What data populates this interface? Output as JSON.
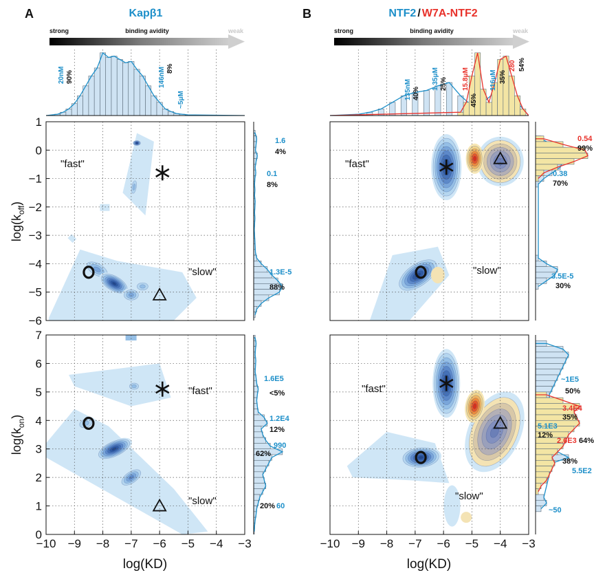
{
  "colors": {
    "blue": "#1d8fc9",
    "red": "#e8322b",
    "black": "#111111",
    "grey": "#bdbdbd",
    "contour_blue_light": "#cfe6f6",
    "contour_blue_dark": "#2b4f9c",
    "contour_yellow": "#f6e6b0",
    "contour_red": "#e23a1f"
  },
  "panel_a": {
    "letter": "A",
    "title": "Kapβ1",
    "scale_strong": "strong",
    "scale_middle": "binding avidity",
    "scale_weak": "weak",
    "histogram_annotations": [
      {
        "text": "20nM",
        "color": "blue"
      },
      {
        "text": "90%",
        "color": "black"
      },
      {
        "text": "146nM",
        "color": "blue"
      },
      {
        "text": "8%",
        "color": "black"
      },
      {
        "text": "~5μM",
        "color": "blue"
      }
    ],
    "koff_labels": {
      "fast": "\"fast\"",
      "slow": "\"slow\""
    },
    "kon_labels": {
      "fast": "\"fast\"",
      "slow": "\"slow\""
    },
    "koff_side_annotations": [
      {
        "value": "1.6",
        "pct": "4%"
      },
      {
        "value": "0.1",
        "pct": "8%"
      },
      {
        "value": "1.3E-5",
        "pct": "88%"
      }
    ],
    "kon_side_annotations": [
      {
        "value": "1.6E5",
        "pct": "<5%"
      },
      {
        "value": "1.2E4",
        "pct": "12%"
      },
      {
        "value": "990",
        "pct": "62%"
      },
      {
        "value": "60",
        "pct": "20%"
      }
    ]
  },
  "panel_b": {
    "letter": "B",
    "title_part1": "NTF2",
    "title_sep": "/",
    "title_part2": "W7A-NTF2",
    "scale_strong": "strong",
    "scale_middle": "binding avidity",
    "scale_weak": "weak",
    "histogram_annotations": [
      {
        "text": "135nM",
        "color": "blue"
      },
      {
        "text": "40%",
        "color": "black"
      },
      {
        "text": "1.35μM",
        "color": "blue"
      },
      {
        "text": "25%",
        "color": "black"
      },
      {
        "text": "15.8μM",
        "color": "red"
      },
      {
        "text": "45%",
        "color": "black"
      },
      {
        "text": "116μM",
        "color": "blue"
      },
      {
        "text": "35%",
        "color": "black"
      },
      {
        "text": "280",
        "color": "red"
      },
      {
        "text": "54%",
        "color": "black"
      }
    ],
    "koff_labels": {
      "fast": "\"fast\"",
      "slow": "\"slow\""
    },
    "kon_labels": {
      "fast": "\"fast\"",
      "slow": "\"slow\""
    },
    "koff_side_annotations": [
      {
        "value": "0.54",
        "pct": "99%",
        "color": "red"
      },
      {
        "value": "0.38",
        "pct": "70%",
        "color": "blue"
      },
      {
        "value": "3.5E-5",
        "pct": "30%",
        "color": "blue"
      }
    ],
    "kon_side_annotations": [
      {
        "value": "~1E5",
        "pct": "50%",
        "color": "blue"
      },
      {
        "value": "3.4E4",
        "pct": "35%",
        "color": "red"
      },
      {
        "value": "5.1E3",
        "pct": "12%",
        "color": "blue"
      },
      {
        "value": "2.6E3",
        "pct": "64%",
        "color": "red"
      },
      {
        "value": "5.5E2",
        "pct": "38%",
        "color": "blue"
      },
      {
        "value": "~50",
        "pct": "",
        "color": "blue"
      }
    ]
  },
  "chart_data": [
    {
      "type": "heatmap",
      "panel": "A",
      "name": "Kapβ1 log(koff) vs log(KD)",
      "xlabel": "",
      "ylabel": "log(koff)",
      "xlim": [
        -10,
        -3
      ],
      "ylim": [
        -6,
        1
      ],
      "x_ticks": [],
      "y_ticks": [
        1,
        0,
        -1,
        -2,
        -3,
        -4,
        -5,
        -6
      ],
      "grid": true,
      "markers": [
        {
          "symbol": "asterisk",
          "x": -5.9,
          "y": -0.8
        },
        {
          "symbol": "circle",
          "x": -8.5,
          "y": -4.3
        },
        {
          "symbol": "triangle",
          "x": -6.0,
          "y": -5.1
        }
      ],
      "peaks": [
        {
          "x": -7.6,
          "y": -4.7
        },
        {
          "x": -7.0,
          "y": -5.1
        },
        {
          "x": -8.3,
          "y": -4.1
        },
        {
          "x": -6.8,
          "y": 0.2
        },
        {
          "x": -6.9,
          "y": -1.3
        }
      ]
    },
    {
      "type": "heatmap",
      "panel": "A",
      "name": "Kapβ1 log(kon) vs log(KD)",
      "xlabel": "log(KD)",
      "ylabel": "log(kon)",
      "xlim": [
        -10,
        -3
      ],
      "ylim": [
        0,
        7
      ],
      "x_ticks": [
        -10,
        -9,
        -8,
        -7,
        -6,
        -5,
        -4,
        -3
      ],
      "y_ticks": [
        0,
        1,
        2,
        3,
        4,
        5,
        6,
        7
      ],
      "grid": true,
      "markers": [
        {
          "symbol": "asterisk",
          "x": -5.9,
          "y": 5.1
        },
        {
          "symbol": "circle",
          "x": -8.5,
          "y": 3.9
        },
        {
          "symbol": "triangle",
          "x": -6.0,
          "y": 1.0
        }
      ],
      "peaks": [
        {
          "x": -7.6,
          "y": 3.0
        },
        {
          "x": -7.0,
          "y": 2.0
        },
        {
          "x": -6.9,
          "y": 5.2
        }
      ]
    },
    {
      "type": "heatmap",
      "panel": "B",
      "name": "NTF2 / W7A-NTF2 log(koff) vs log(KD)",
      "xlabel": "",
      "ylabel": "",
      "xlim": [
        -10,
        -3
      ],
      "ylim": [
        -6,
        1
      ],
      "x_ticks": [],
      "grid": true,
      "markers": [
        {
          "symbol": "asterisk",
          "x": -5.9,
          "y": -0.6
        },
        {
          "symbol": "circle",
          "x": -6.8,
          "y": -4.3
        },
        {
          "symbol": "triangle",
          "x": -4.0,
          "y": -0.3
        }
      ],
      "peaks": [
        {
          "series": "NTF2",
          "x": -5.9,
          "y": -0.5
        },
        {
          "series": "NTF2",
          "x": -6.8,
          "y": -4.3
        },
        {
          "series": "W7A-NTF2",
          "x": -4.9,
          "y": -0.3
        },
        {
          "series": "W7A-NTF2",
          "x": -4.0,
          "y": -0.3
        }
      ]
    },
    {
      "type": "heatmap",
      "panel": "B",
      "name": "NTF2 / W7A-NTF2 log(kon) vs log(KD)",
      "xlabel": "log(KD)",
      "ylabel": "",
      "xlim": [
        -10,
        -3
      ],
      "ylim": [
        0,
        7
      ],
      "x_ticks": [
        -10,
        -9,
        -8,
        -7,
        -6,
        -5,
        -4,
        -3
      ],
      "grid": true,
      "markers": [
        {
          "symbol": "asterisk",
          "x": -5.9,
          "y": 5.3
        },
        {
          "symbol": "circle",
          "x": -6.8,
          "y": 2.7
        },
        {
          "symbol": "triangle",
          "x": -4.0,
          "y": 3.9
        }
      ],
      "peaks": [
        {
          "series": "NTF2",
          "x": -5.9,
          "y": 5.3
        },
        {
          "series": "NTF2",
          "x": -6.8,
          "y": 2.7
        },
        {
          "series": "W7A-NTF2",
          "x": -4.9,
          "y": 4.5
        },
        {
          "series": "W7A-NTF2",
          "x": -4.0,
          "y": 3.9
        }
      ]
    },
    {
      "type": "bar",
      "panel": "A",
      "name": "Kapβ1 KD histogram",
      "xlim": [
        -10,
        -3
      ],
      "bin_centers": [
        -9.6,
        -9.4,
        -9.2,
        -9.0,
        -8.8,
        -8.6,
        -8.4,
        -8.2,
        -8.0,
        -7.8,
        -7.6,
        -7.4,
        -7.2,
        -7.0,
        -6.8,
        -6.6,
        -6.4,
        -6.2,
        -6.0,
        -5.8,
        -5.6,
        -5.4,
        -5.2,
        -5.0
      ],
      "values": [
        0.02,
        0.05,
        0.1,
        0.18,
        0.3,
        0.45,
        0.6,
        0.72,
        0.95,
        0.88,
        0.9,
        0.85,
        0.8,
        0.82,
        0.7,
        0.6,
        0.45,
        0.3,
        0.2,
        0.1,
        0.06,
        0.03,
        0.02,
        0.01
      ]
    },
    {
      "type": "bar",
      "panel": "B",
      "name": "NTF2 / W7A-NTF2 KD histogram",
      "xlim": [
        -10,
        -3
      ],
      "series": [
        {
          "name": "NTF2",
          "bin_centers": [
            -9.0,
            -8.6,
            -8.2,
            -7.8,
            -7.4,
            -7.0,
            -6.6,
            -6.2,
            -5.8,
            -5.4,
            -5.0,
            -4.6,
            -4.2,
            -3.8,
            -3.4
          ],
          "values": [
            0.02,
            0.05,
            0.1,
            0.2,
            0.3,
            0.35,
            0.38,
            0.45,
            0.5,
            0.3,
            0.15,
            0.2,
            0.35,
            0.4,
            0.2
          ]
        },
        {
          "name": "W7A-NTF2",
          "bin_centers": [
            -5.4,
            -5.2,
            -5.0,
            -4.8,
            -4.6,
            -4.4,
            -4.2,
            -4.0,
            -3.8,
            -3.6,
            -3.4,
            -3.2
          ],
          "values": [
            0.05,
            0.2,
            0.6,
            0.95,
            0.4,
            0.2,
            0.5,
            0.85,
            0.9,
            0.6,
            0.3,
            0.1
          ]
        }
      ]
    },
    {
      "type": "bar",
      "panel": "A",
      "name": "Kapβ1 log(koff) marginal",
      "ylim": [
        -6,
        1
      ],
      "bin_centers": [
        0.6,
        0.4,
        0.2,
        0.0,
        -0.2,
        -0.4,
        -0.6,
        -0.8,
        -1.0,
        -1.2,
        -1.4,
        -1.6,
        -1.8,
        -2.0,
        -2.2,
        -2.4,
        -2.6,
        -2.8,
        -3.0,
        -3.2,
        -3.4,
        -3.6,
        -3.8,
        -4.0,
        -4.2,
        -4.4,
        -4.6,
        -4.8,
        -5.0,
        -5.2,
        -5.4,
        -5.6,
        -5.8
      ],
      "values": [
        0.05,
        0.1,
        0.08,
        0.06,
        0.12,
        0.08,
        0.05,
        0.07,
        0.04,
        0.03,
        0.04,
        0.03,
        0.05,
        0.04,
        0.03,
        0.04,
        0.03,
        0.02,
        0.03,
        0.04,
        0.05,
        0.06,
        0.1,
        0.25,
        0.45,
        0.6,
        0.8,
        0.95,
        0.85,
        0.5,
        0.25,
        0.1,
        0.05
      ]
    },
    {
      "type": "bar",
      "panel": "A",
      "name": "Kapβ1 log(kon) marginal",
      "ylim": [
        0,
        7
      ],
      "bin_centers": [
        6.9,
        6.7,
        6.5,
        6.3,
        6.1,
        5.9,
        5.7,
        5.5,
        5.3,
        5.1,
        4.9,
        4.7,
        4.5,
        4.3,
        4.1,
        3.9,
        3.7,
        3.5,
        3.3,
        3.1,
        2.9,
        2.7,
        2.5,
        2.3,
        2.1,
        1.9,
        1.7,
        1.5,
        1.3,
        1.1,
        0.9,
        0.7,
        0.5,
        0.3,
        0.1
      ],
      "values": [
        0.05,
        0.08,
        0.06,
        0.05,
        0.07,
        0.06,
        0.05,
        0.08,
        0.1,
        0.15,
        0.12,
        0.1,
        0.12,
        0.15,
        0.35,
        0.45,
        0.25,
        0.3,
        0.4,
        0.55,
        0.95,
        0.6,
        0.5,
        0.4,
        0.3,
        0.35,
        0.4,
        0.3,
        0.2,
        0.15,
        0.1,
        0.08,
        0.05,
        0.03,
        0.02
      ]
    },
    {
      "type": "bar",
      "panel": "B",
      "name": "NTF2 / W7A-NTF2 log(koff) marginal",
      "ylim": [
        -6,
        1
      ],
      "series": [
        {
          "name": "NTF2",
          "bin_centers": [
            0.4,
            0.2,
            0.0,
            -0.2,
            -0.4,
            -0.6,
            -0.8,
            -1.0,
            -1.2,
            -3.8,
            -4.0,
            -4.2,
            -4.4,
            -4.6,
            -4.8
          ],
          "values": [
            0.1,
            0.3,
            0.55,
            0.7,
            0.5,
            0.45,
            0.3,
            0.15,
            0.05,
            0.05,
            0.2,
            0.4,
            0.35,
            0.2,
            0.05
          ]
        },
        {
          "name": "W7A-NTF2",
          "bin_centers": [
            0.4,
            0.2,
            0.0,
            -0.2,
            -0.4,
            -0.6,
            -0.8,
            -1.0
          ],
          "values": [
            0.15,
            0.5,
            0.9,
            0.95,
            0.7,
            0.4,
            0.15,
            0.05
          ]
        }
      ]
    },
    {
      "type": "bar",
      "panel": "B",
      "name": "NTF2 / W7A-NTF2 log(kon) marginal",
      "ylim": [
        0,
        7
      ],
      "series": [
        {
          "name": "NTF2",
          "bin_centers": [
            6.7,
            6.5,
            6.3,
            6.1,
            5.9,
            5.7,
            5.5,
            5.3,
            5.1,
            4.9,
            3.9,
            3.7,
            3.5,
            2.9,
            2.7,
            2.5,
            1.3,
            1.1,
            0.9
          ],
          "values": [
            0.2,
            0.5,
            0.6,
            0.55,
            0.5,
            0.45,
            0.4,
            0.35,
            0.3,
            0.25,
            0.3,
            0.2,
            0.15,
            0.4,
            0.6,
            0.3,
            0.15,
            0.2,
            0.1
          ]
        },
        {
          "name": "W7A-NTF2",
          "bin_centers": [
            4.9,
            4.7,
            4.5,
            4.3,
            4.1,
            3.9,
            3.7,
            3.5,
            3.3,
            3.1,
            2.9,
            2.7,
            2.5,
            2.3,
            2.1,
            1.9,
            1.7,
            1.5
          ],
          "values": [
            0.2,
            0.5,
            0.8,
            0.7,
            0.75,
            0.8,
            0.7,
            0.6,
            0.55,
            0.5,
            0.4,
            0.3,
            0.35,
            0.3,
            0.25,
            0.2,
            0.1,
            0.05
          ]
        }
      ]
    }
  ]
}
